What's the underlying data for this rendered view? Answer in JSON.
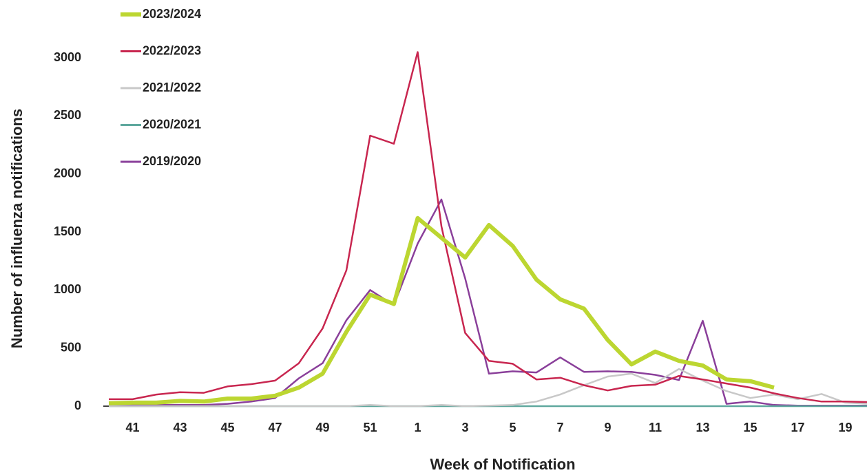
{
  "chart_data": {
    "type": "line",
    "x_label": "Week of Notification",
    "y_label": "Number of  influenza notifications",
    "categories": [
      null,
      "41",
      null,
      "43",
      null,
      "45",
      null,
      "47",
      null,
      "49",
      null,
      "51",
      null,
      "1",
      null,
      "3",
      null,
      "5",
      null,
      "7",
      null,
      "9",
      null,
      "11",
      null,
      "13",
      null,
      "15",
      null,
      "17",
      null,
      "19",
      null,
      null
    ],
    "ylim": [
      0,
      3300
    ],
    "yticks": [
      0,
      500,
      1000,
      1500,
      2000,
      2500,
      3000
    ],
    "legend": "top-left",
    "series": [
      {
        "name": "2023/2024",
        "color": "#bcd631",
        "values": [
          25,
          30,
          30,
          45,
          40,
          65,
          65,
          90,
          160,
          280,
          640,
          960,
          880,
          1620,
          1450,
          1280,
          1560,
          1380,
          1090,
          920,
          840,
          570,
          360,
          470,
          390,
          350,
          230,
          215,
          160,
          null,
          null,
          null,
          null,
          null
        ]
      },
      {
        "name": "2022/2023",
        "color": "#c8264f",
        "values": [
          60,
          60,
          100,
          120,
          115,
          170,
          190,
          220,
          370,
          670,
          1170,
          2330,
          2260,
          3050,
          1550,
          630,
          390,
          365,
          230,
          245,
          180,
          135,
          175,
          185,
          260,
          230,
          195,
          160,
          110,
          70,
          40,
          40,
          35,
          30
        ]
      },
      {
        "name": "2021/2022",
        "color": "#c8c8c8",
        "values": [
          0,
          0,
          0,
          0,
          0,
          0,
          0,
          0,
          0,
          0,
          0,
          10,
          0,
          0,
          10,
          0,
          5,
          10,
          40,
          100,
          180,
          255,
          280,
          200,
          320,
          220,
          130,
          70,
          100,
          60,
          105,
          30,
          20,
          15
        ]
      },
      {
        "name": "2020/2021",
        "color": "#5fa89e",
        "values": [
          0,
          0,
          0,
          0,
          0,
          0,
          0,
          0,
          0,
          0,
          0,
          0,
          0,
          0,
          0,
          0,
          0,
          0,
          0,
          0,
          0,
          0,
          0,
          0,
          0,
          0,
          0,
          0,
          0,
          0,
          0,
          0,
          0,
          0
        ]
      },
      {
        "name": "2019/2020",
        "color": "#8a3f9a",
        "values": [
          10,
          10,
          10,
          10,
          10,
          20,
          40,
          70,
          240,
          370,
          740,
          1000,
          870,
          1400,
          1780,
          1100,
          280,
          300,
          290,
          420,
          295,
          300,
          295,
          270,
          225,
          735,
          20,
          40,
          10,
          5,
          5,
          5,
          5,
          5
        ]
      }
    ]
  }
}
